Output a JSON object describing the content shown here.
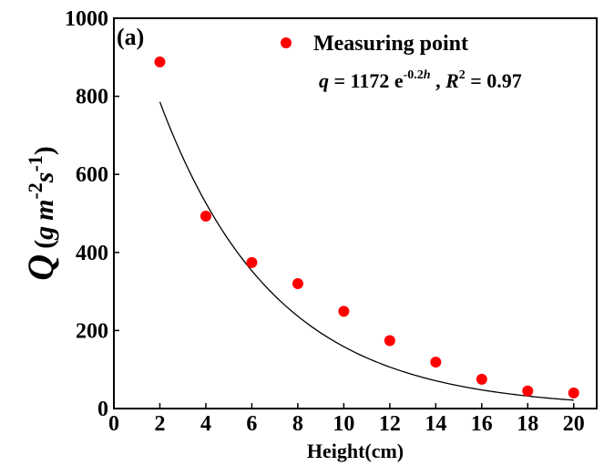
{
  "chart_data": {
    "type": "scatter",
    "panel_label": "(a)",
    "xlabel": "Height(cm)",
    "ylabel": {
      "symbol": "Q",
      "unit_prefix": "(",
      "unit_g": "g",
      "unit_m": "m",
      "unit_m_exp": "-2",
      "unit_s": "s",
      "unit_s_exp": "-1",
      "unit_suffix": ")"
    },
    "xlim": [
      0,
      21
    ],
    "ylim": [
      0,
      1000
    ],
    "xticks": [
      0,
      2,
      4,
      6,
      8,
      10,
      12,
      14,
      16,
      18,
      20
    ],
    "yticks": [
      0,
      200,
      400,
      600,
      800,
      1000
    ],
    "series": [
      {
        "name": "Measuring point",
        "color": "#ff0000",
        "x": [
          2,
          4,
          6,
          8,
          10,
          12,
          14,
          16,
          18,
          20
        ],
        "y": [
          888,
          493,
          374,
          320,
          249,
          174,
          119,
          75,
          45,
          40
        ]
      }
    ],
    "fit": {
      "type": "exponential",
      "a": 1172,
      "b": -0.2,
      "x_range": [
        2,
        20
      ],
      "color": "#000000",
      "equation": {
        "lhs": "q",
        "equals": " = 1172 e",
        "exponent": "-0.2",
        "exponent_var": "h",
        "sep": " , ",
        "r": "R",
        "r_exp": "2",
        "r_value": " = 0.97"
      }
    },
    "legend_position": "top-right",
    "grid": false
  }
}
